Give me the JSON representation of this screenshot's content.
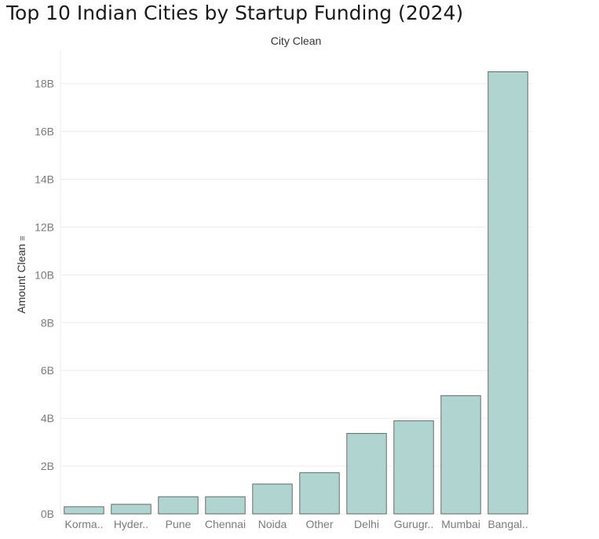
{
  "title": "Top 10 Indian Cities by Startup Funding (2024)",
  "column_header": "City Clean",
  "y_axis_title": "Amount Clean",
  "colors": {
    "bar_fill": "#b0d4cf",
    "bar_stroke": "#4a4a4a",
    "grid": "#ececec"
  },
  "chart_data": {
    "type": "bar",
    "categories": [
      "Korma..",
      "Hyder..",
      "Pune",
      "Chennai",
      "Noida",
      "Other",
      "Delhi",
      "Gurugr..",
      "Mumbai",
      "Bangal.."
    ],
    "values": [
      0.3,
      0.4,
      0.72,
      0.72,
      1.25,
      1.72,
      3.37,
      3.9,
      4.95,
      18.5
    ],
    "value_unit": "billions",
    "ylabel": "Amount Clean",
    "xlabel": "City Clean",
    "ylim": [
      0,
      19.4
    ],
    "yticks": [
      0,
      2,
      4,
      6,
      8,
      10,
      12,
      14,
      16,
      18
    ],
    "ytick_labels": [
      "0B",
      "2B",
      "4B",
      "6B",
      "8B",
      "10B",
      "12B",
      "14B",
      "16B",
      "18B"
    ],
    "grid": true
  }
}
